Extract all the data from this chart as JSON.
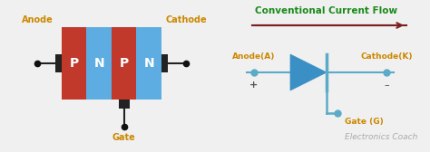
{
  "bg_color": "#f0f0f0",
  "left_panel": {
    "p_color": "#c0392b",
    "n_color": "#5dade2",
    "labels": [
      "P",
      "N",
      "P",
      "N"
    ],
    "label_color": "white",
    "anode_label": "Anode",
    "cathode_label": "Cathode",
    "gate_label": "Gate",
    "label_color_main": "#cc8800"
  },
  "right_panel": {
    "title": "Conventional Current Flow",
    "title_color": "#1a8a1a",
    "arrow_color": "#7a2020",
    "diode_color": "#3a8fc4",
    "wire_color": "#5aaac8",
    "anode_label": "Anode(A)",
    "cathode_label": "Cathode(K)",
    "gate_label": "Gate (G)",
    "plus_label": "+",
    "minus_label": "–",
    "label_color": "#cc8800",
    "watermark": "Electronics Coach",
    "watermark_color": "#aaaaaa"
  }
}
